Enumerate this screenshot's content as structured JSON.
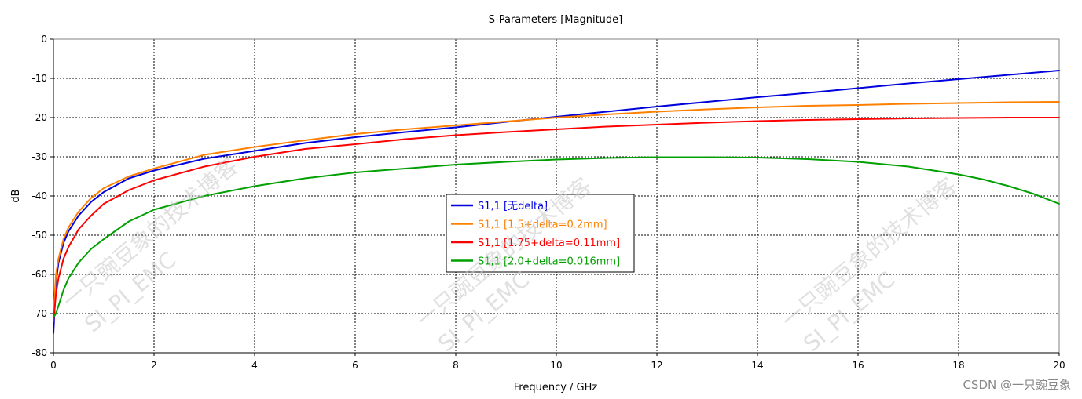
{
  "chart_data": {
    "type": "line",
    "title": "S-Parameters [Magnitude]",
    "xlabel": "Frequency / GHz",
    "ylabel": "dB",
    "xlim": [
      0,
      20
    ],
    "ylim": [
      -80,
      0
    ],
    "xticks": [
      0,
      2,
      4,
      6,
      8,
      10,
      12,
      14,
      16,
      18,
      20
    ],
    "yticks": [
      0,
      -10,
      -20,
      -30,
      -40,
      -50,
      -60,
      -70,
      -80
    ],
    "grid": true,
    "legend_position": "center",
    "series": [
      {
        "name": "S1,1 [无delta]",
        "color": "#0000dd",
        "x": [
          0,
          0.05,
          0.1,
          0.2,
          0.3,
          0.5,
          0.75,
          1,
          1.5,
          2,
          3,
          4,
          5,
          6,
          7,
          8,
          9,
          10,
          11,
          12,
          13,
          14,
          15,
          16,
          17,
          18,
          19,
          20
        ],
        "y": [
          -75,
          -62,
          -57,
          -52,
          -49,
          -45,
          -41.5,
          -39,
          -35.5,
          -33.5,
          -30.5,
          -28.5,
          -26.5,
          -25,
          -23.7,
          -22.5,
          -21.1,
          -19.8,
          -18.5,
          -17.2,
          -16,
          -14.8,
          -13.7,
          -12.5,
          -11.3,
          -10.2,
          -9.1,
          -8
        ]
      },
      {
        "name": "S1,1 [1.5+delta=0.2mm]",
        "color": "#ff8000",
        "x": [
          0,
          0.05,
          0.1,
          0.2,
          0.3,
          0.5,
          0.75,
          1,
          1.5,
          2,
          3,
          4,
          5,
          6,
          7,
          8,
          9,
          10,
          11,
          12,
          13,
          14,
          15,
          16,
          17,
          18,
          19,
          20
        ],
        "y": [
          -70,
          -60,
          -56,
          -51,
          -48,
          -44,
          -40.5,
          -38,
          -35,
          -33,
          -29.5,
          -27.5,
          -25.8,
          -24.2,
          -23,
          -22,
          -21,
          -20,
          -19.2,
          -18.5,
          -17.9,
          -17.4,
          -17,
          -16.8,
          -16.5,
          -16.3,
          -16.1,
          -16
        ]
      },
      {
        "name": "S1,1 [1.75+delta=0.11mm]",
        "color": "#ff0000",
        "x": [
          0,
          0.05,
          0.1,
          0.2,
          0.3,
          0.5,
          0.75,
          1,
          1.5,
          2,
          3,
          4,
          5,
          6,
          7,
          8,
          9,
          10,
          11,
          12,
          13,
          14,
          15,
          16,
          17,
          18,
          19,
          20
        ],
        "y": [
          -72,
          -65,
          -61,
          -56,
          -53,
          -48.5,
          -45,
          -42,
          -38.5,
          -36,
          -32.5,
          -30,
          -28,
          -26.8,
          -25.5,
          -24.5,
          -23.7,
          -23,
          -22.3,
          -21.8,
          -21.3,
          -20.9,
          -20.6,
          -20.4,
          -20.2,
          -20.1,
          -20,
          -20
        ]
      },
      {
        "name": "S1,1 [2.0+delta=0.016mm]",
        "color": "#00a000",
        "x": [
          0,
          0.05,
          0.1,
          0.2,
          0.3,
          0.5,
          0.75,
          1,
          1.5,
          2,
          3,
          4,
          5,
          6,
          7,
          8,
          9,
          10,
          11,
          12,
          13,
          14,
          15,
          16,
          17,
          18,
          18.5,
          19,
          19.5,
          20
        ],
        "y": [
          -71,
          -70,
          -68,
          -64,
          -61,
          -57,
          -53.5,
          -51,
          -46.5,
          -43.5,
          -40,
          -37.5,
          -35.5,
          -34,
          -33,
          -32,
          -31.3,
          -30.7,
          -30.3,
          -30.1,
          -30.1,
          -30.2,
          -30.6,
          -31.3,
          -32.5,
          -34.5,
          -35.8,
          -37.5,
          -39.5,
          -42
        ]
      }
    ]
  },
  "watermarks": [
    "一只豌豆象的技术博客",
    "SI_PI_EMC"
  ],
  "credit": "CSDN @一只豌豆象"
}
